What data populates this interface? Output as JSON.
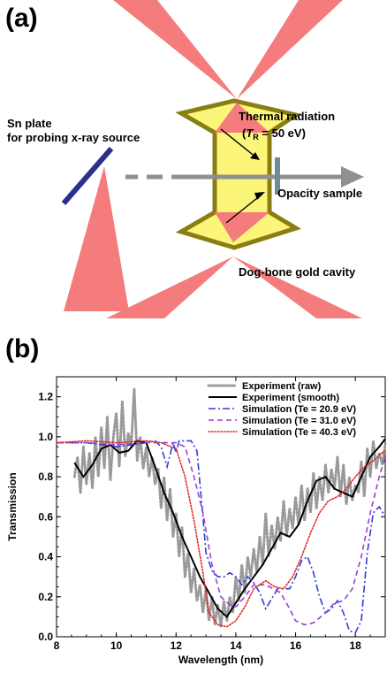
{
  "panel_a": {
    "label": "(a)",
    "sn_plate_line1": "Sn plate",
    "sn_plate_line2": "for probing x-ray source",
    "thermal_line1": "Thermal radiation",
    "thermal_T": "T",
    "thermal_R": "R",
    "thermal_rest": " = 50 eV)",
    "opacity_sample": "Opacity sample",
    "cavity": "Dog-bone gold cavity",
    "colors": {
      "laser": "#f47c7c",
      "cavity_fill": "#fbf67a",
      "cavity_wall": "#8a7d12",
      "plate": "#2c2f8c",
      "beam": "#909090",
      "sample": "#6a8e96"
    }
  },
  "panel_b": {
    "label": "(b)"
  },
  "chart_data": {
    "type": "line",
    "xlabel": "Wavelength (nm)",
    "ylabel": "Transmission",
    "xlim": [
      8,
      19
    ],
    "ylim": [
      0,
      1.3
    ],
    "xticks": [
      8,
      10,
      12,
      14,
      16,
      18
    ],
    "yticks": [
      0.0,
      0.2,
      0.4,
      0.6,
      0.8,
      1.0,
      1.2
    ],
    "legend_position": "top-right",
    "series": [
      {
        "name": "Experiment (raw)",
        "style": "dotted-gray",
        "color": "#9a9a9a",
        "x": [
          8.6,
          8.7,
          8.8,
          8.9,
          9.0,
          9.1,
          9.2,
          9.3,
          9.4,
          9.5,
          9.6,
          9.7,
          9.8,
          9.9,
          10.0,
          10.1,
          10.2,
          10.3,
          10.4,
          10.5,
          10.6,
          10.7,
          10.8,
          10.9,
          11.0,
          11.1,
          11.2,
          11.3,
          11.4,
          11.5,
          11.6,
          11.7,
          11.8,
          11.9,
          12.0,
          12.1,
          12.2,
          12.3,
          12.4,
          12.5,
          12.6,
          12.7,
          12.8,
          12.9,
          13.0,
          13.1,
          13.2,
          13.3,
          13.4,
          13.5,
          13.6,
          13.7,
          13.8,
          13.9,
          14.0,
          14.1,
          14.2,
          14.3,
          14.4,
          14.5,
          14.6,
          14.7,
          14.8,
          14.9,
          15.0,
          15.1,
          15.2,
          15.3,
          15.4,
          15.5,
          15.6,
          15.7,
          15.8,
          15.9,
          16.0,
          16.1,
          16.2,
          16.3,
          16.4,
          16.5,
          16.6,
          16.7,
          16.8,
          16.9,
          17.0,
          17.1,
          17.2,
          17.3,
          17.4,
          17.5,
          17.6,
          17.7,
          17.8,
          17.9,
          18.0,
          18.1,
          18.2,
          18.3,
          18.4,
          18.5,
          18.6,
          18.7,
          18.8,
          18.9,
          19.0
        ],
        "y": [
          0.8,
          0.9,
          0.72,
          0.95,
          0.76,
          0.92,
          0.74,
          1.0,
          0.8,
          1.05,
          0.84,
          1.1,
          0.78,
          1.0,
          1.12,
          0.85,
          1.18,
          0.9,
          1.02,
          0.95,
          1.24,
          0.88,
          1.0,
          0.84,
          0.95,
          0.8,
          0.9,
          0.76,
          0.84,
          0.64,
          0.8,
          0.58,
          0.74,
          0.5,
          0.62,
          0.4,
          0.55,
          0.3,
          0.42,
          0.22,
          0.34,
          0.18,
          0.26,
          0.12,
          0.24,
          0.08,
          0.2,
          0.06,
          0.16,
          0.05,
          0.18,
          0.08,
          0.2,
          0.12,
          0.3,
          0.18,
          0.36,
          0.22,
          0.4,
          0.3,
          0.44,
          0.32,
          0.5,
          0.36,
          0.62,
          0.4,
          0.56,
          0.44,
          0.6,
          0.48,
          0.68,
          0.5,
          0.64,
          0.54,
          0.7,
          0.56,
          0.76,
          0.58,
          0.74,
          0.62,
          0.82,
          0.64,
          0.8,
          0.68,
          0.86,
          0.72,
          0.84,
          0.74,
          0.9,
          0.7,
          0.86,
          0.66,
          0.8,
          0.68,
          0.76,
          0.72,
          0.88,
          0.7,
          0.94,
          0.8,
          0.98,
          0.84,
          0.92,
          0.86,
          0.96
        ]
      },
      {
        "name": "Experiment (smooth)",
        "style": "solid-black",
        "color": "#000000",
        "x": [
          8.6,
          8.9,
          9.2,
          9.5,
          9.8,
          10.1,
          10.4,
          10.7,
          11.0,
          11.3,
          11.6,
          11.9,
          12.2,
          12.5,
          12.8,
          13.1,
          13.4,
          13.7,
          14.0,
          14.3,
          14.6,
          14.9,
          15.2,
          15.5,
          15.8,
          16.1,
          16.4,
          16.7,
          17.0,
          17.3,
          17.6,
          17.9,
          18.2,
          18.5,
          18.8,
          19.0
        ],
        "y": [
          0.87,
          0.8,
          0.86,
          0.94,
          0.96,
          0.92,
          0.93,
          0.98,
          0.97,
          0.85,
          0.72,
          0.62,
          0.5,
          0.4,
          0.3,
          0.22,
          0.14,
          0.1,
          0.17,
          0.24,
          0.3,
          0.36,
          0.44,
          0.52,
          0.5,
          0.56,
          0.68,
          0.78,
          0.8,
          0.74,
          0.72,
          0.7,
          0.8,
          0.9,
          0.95,
          0.99
        ]
      },
      {
        "name": "Simulation (Te = 20.9 eV)",
        "style": "dashdot-blue",
        "color": "#2e3fd6",
        "x": [
          8.0,
          8.5,
          9.0,
          9.5,
          10.0,
          10.5,
          11.0,
          11.3,
          11.5,
          11.7,
          11.9,
          12.0,
          12.1,
          12.3,
          12.5,
          12.7,
          12.9,
          13.0,
          13.2,
          13.4,
          13.6,
          13.8,
          14.0,
          14.2,
          14.4,
          14.6,
          14.8,
          15.0,
          15.2,
          15.4,
          15.6,
          15.8,
          16.0,
          16.2,
          16.4,
          16.6,
          16.8,
          17.0,
          17.2,
          17.4,
          17.6,
          17.8,
          18.0,
          18.2,
          18.4,
          18.6,
          18.8,
          19.0
        ],
        "y": [
          0.97,
          0.97,
          0.97,
          0.96,
          0.95,
          0.96,
          0.97,
          0.98,
          0.95,
          0.85,
          0.97,
          0.92,
          0.98,
          0.98,
          0.98,
          0.93,
          0.6,
          0.42,
          0.33,
          0.3,
          0.3,
          0.32,
          0.3,
          0.26,
          0.3,
          0.27,
          0.22,
          0.14,
          0.19,
          0.24,
          0.24,
          0.24,
          0.3,
          0.38,
          0.4,
          0.32,
          0.2,
          0.12,
          0.14,
          0.18,
          0.12,
          0.03,
          0.02,
          0.08,
          0.42,
          0.62,
          0.65,
          0.6
        ]
      },
      {
        "name": "Simulation (Te = 31.0 eV)",
        "style": "dashed-purple",
        "color": "#9a3fd6",
        "x": [
          8.0,
          9.0,
          10.0,
          11.0,
          11.5,
          12.0,
          12.3,
          12.6,
          12.9,
          13.2,
          13.5,
          13.8,
          14.0,
          14.3,
          14.6,
          15.0,
          15.5,
          15.8,
          16.0,
          16.3,
          16.6,
          17.0,
          17.3,
          17.6,
          17.9,
          18.2,
          18.5,
          18.8,
          19.0
        ],
        "y": [
          0.97,
          0.97,
          0.96,
          0.97,
          0.97,
          0.97,
          0.95,
          0.8,
          0.62,
          0.36,
          0.2,
          0.16,
          0.15,
          0.2,
          0.26,
          0.26,
          0.22,
          0.14,
          0.08,
          0.06,
          0.07,
          0.12,
          0.17,
          0.18,
          0.24,
          0.4,
          0.62,
          0.8,
          0.9
        ]
      },
      {
        "name": "Simulation (Te = 40.3 eV)",
        "style": "dotted-red",
        "color": "#e02828",
        "x": [
          8.0,
          9.0,
          10.0,
          11.0,
          11.5,
          12.0,
          12.3,
          12.6,
          12.9,
          13.1,
          13.4,
          13.7,
          14.0,
          14.3,
          14.6,
          15.0,
          15.3,
          15.6,
          15.9,
          16.2,
          16.5,
          16.8,
          17.1,
          17.4,
          17.7,
          18.0,
          18.3,
          18.6,
          18.9,
          19.0
        ],
        "y": [
          0.97,
          0.98,
          0.97,
          0.98,
          0.97,
          0.94,
          0.8,
          0.58,
          0.32,
          0.12,
          0.06,
          0.05,
          0.08,
          0.15,
          0.24,
          0.28,
          0.25,
          0.24,
          0.3,
          0.4,
          0.52,
          0.62,
          0.68,
          0.7,
          0.74,
          0.8,
          0.85,
          0.88,
          0.92,
          0.93
        ]
      }
    ]
  }
}
